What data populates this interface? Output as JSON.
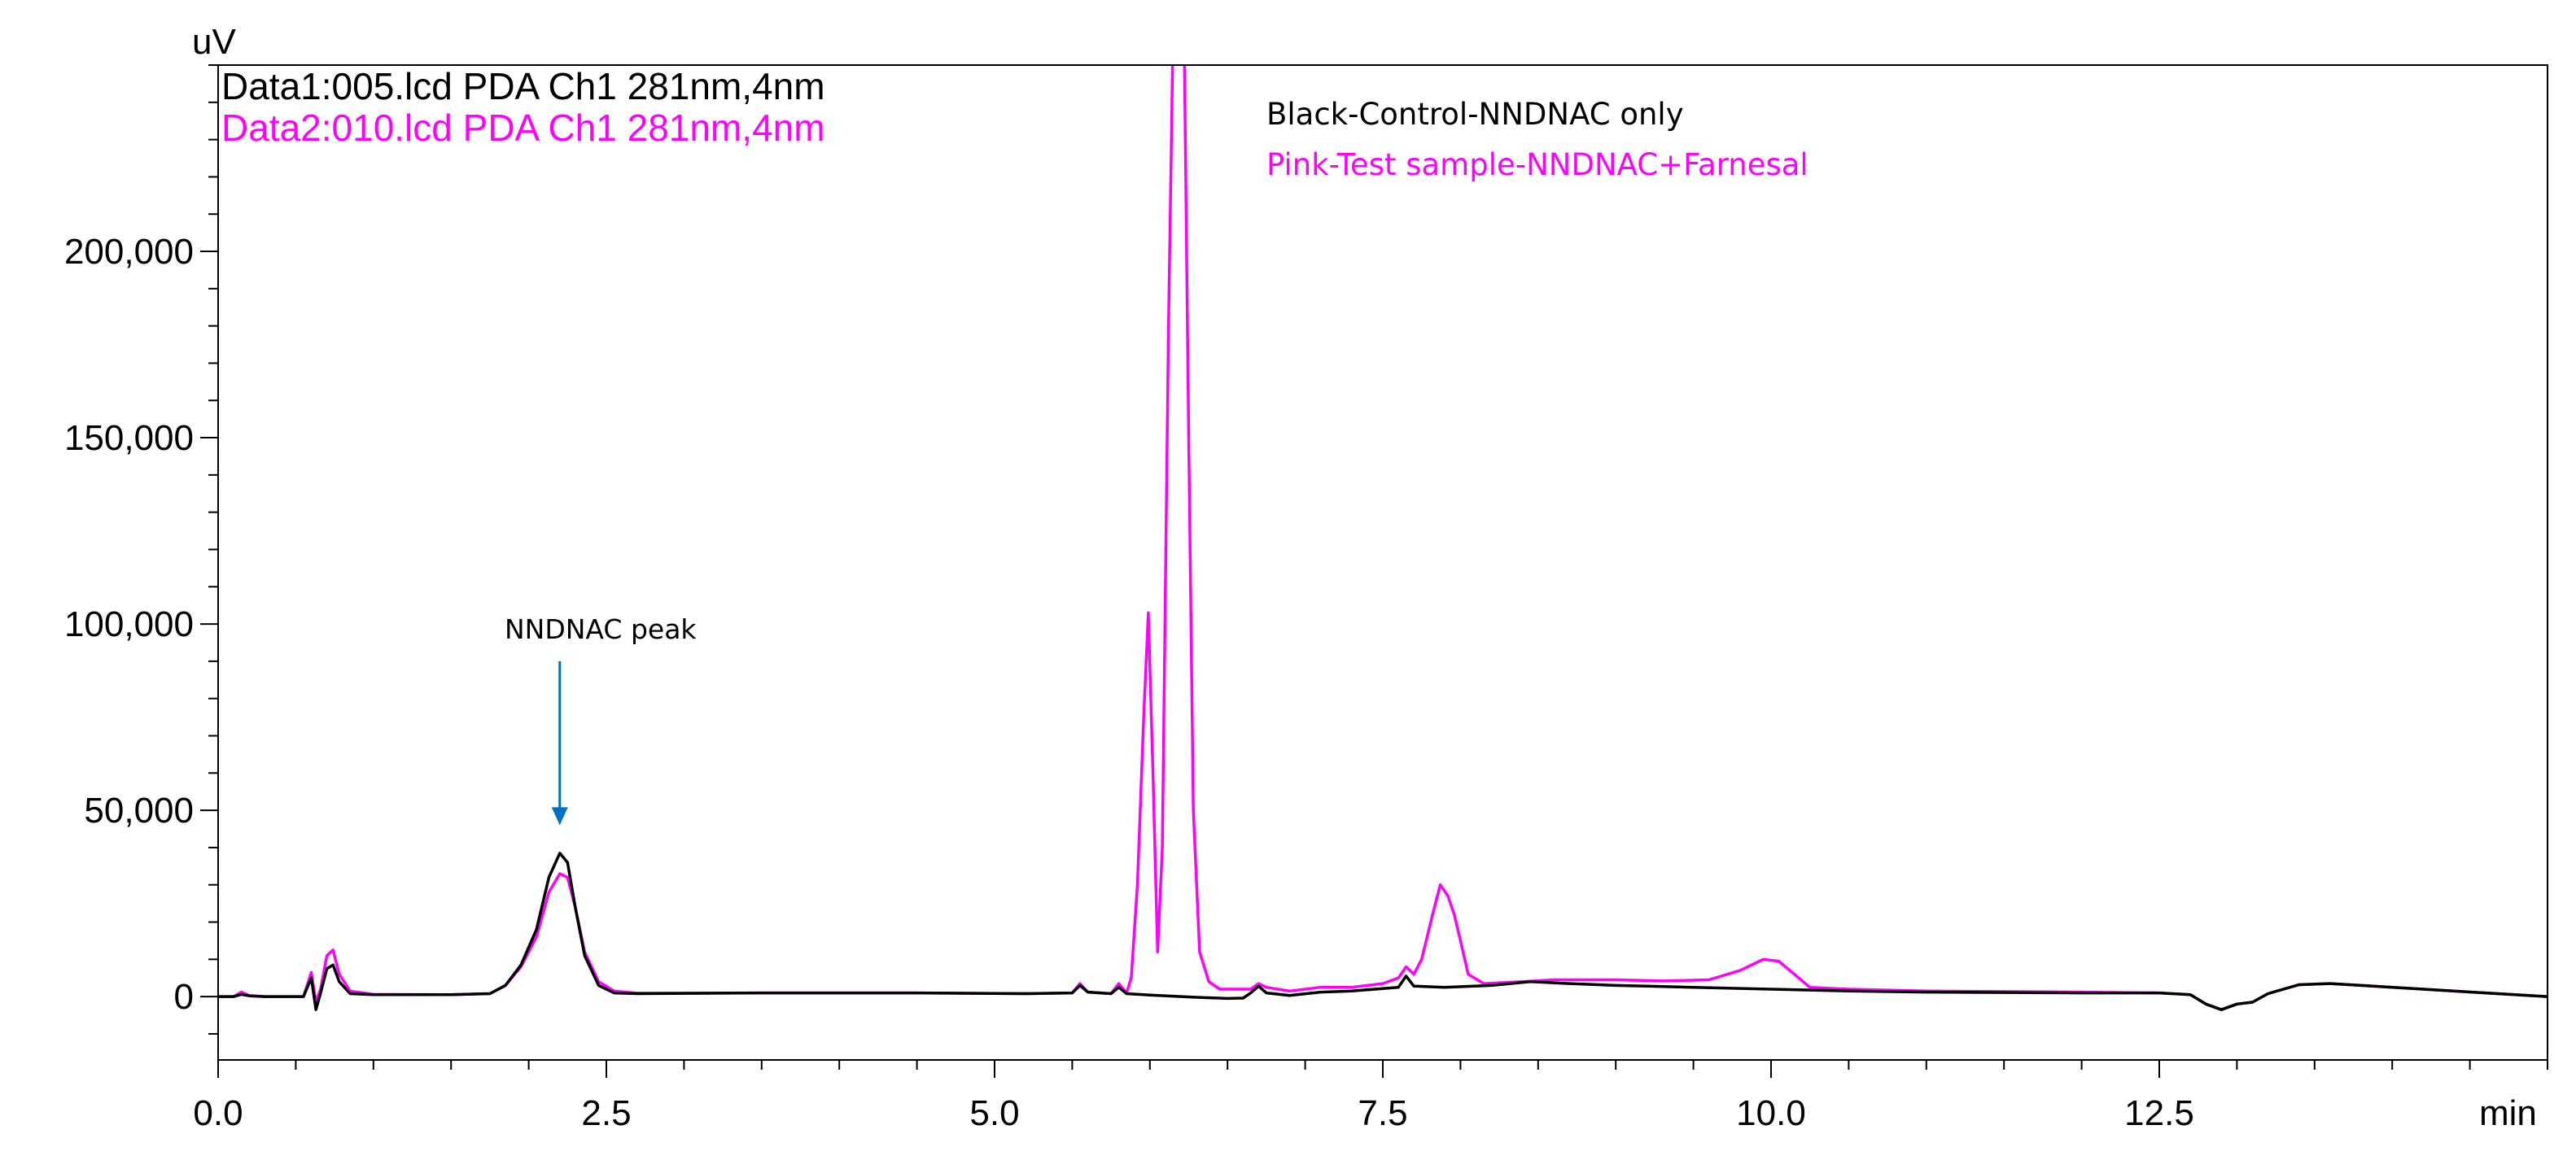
{
  "chart_data": {
    "type": "line",
    "y_unit": "uV",
    "x_unit": "min",
    "xlim": [
      0,
      15
    ],
    "ylim": [
      -17000,
      250000
    ],
    "x_ticks": [
      0.0,
      2.5,
      5.0,
      7.5,
      10.0,
      12.5
    ],
    "x_tick_labels": [
      "0.0",
      "2.5",
      "5.0",
      "7.5",
      "10.0",
      "12.5"
    ],
    "x_minor_step": 0.5,
    "y_ticks": [
      0,
      50000,
      100000,
      150000,
      200000
    ],
    "y_tick_labels": [
      "0",
      "50,000",
      "100,000",
      "150,000",
      "200,000"
    ],
    "y_minor_step": 10000,
    "grid": false,
    "legend_position": "top-left",
    "series": [
      {
        "name": "Data1:005.lcd PDA  Ch1 281nm,4nm",
        "color": "#000000",
        "points": [
          [
            0,
            0
          ],
          [
            0.1,
            0
          ],
          [
            0.15,
            600
          ],
          [
            0.2,
            200
          ],
          [
            0.3,
            0
          ],
          [
            0.55,
            0
          ],
          [
            0.6,
            5000
          ],
          [
            0.63,
            -3500
          ],
          [
            0.66,
            1000
          ],
          [
            0.7,
            7500
          ],
          [
            0.74,
            8500
          ],
          [
            0.78,
            4000
          ],
          [
            0.85,
            800
          ],
          [
            1.0,
            500
          ],
          [
            1.5,
            500
          ],
          [
            1.75,
            800
          ],
          [
            1.85,
            3000
          ],
          [
            1.95,
            8500
          ],
          [
            2.05,
            18000
          ],
          [
            2.13,
            32000
          ],
          [
            2.2,
            38500
          ],
          [
            2.25,
            36000
          ],
          [
            2.3,
            24000
          ],
          [
            2.36,
            11000
          ],
          [
            2.45,
            3000
          ],
          [
            2.55,
            1000
          ],
          [
            2.7,
            800
          ],
          [
            3.5,
            1000
          ],
          [
            4.5,
            1000
          ],
          [
            5.2,
            800
          ],
          [
            5.5,
            1000
          ],
          [
            5.55,
            3000
          ],
          [
            5.6,
            1200
          ],
          [
            5.75,
            800
          ],
          [
            5.8,
            2500
          ],
          [
            5.85,
            800
          ],
          [
            6.0,
            400
          ],
          [
            6.3,
            -200
          ],
          [
            6.5,
            -500
          ],
          [
            6.6,
            -400
          ],
          [
            6.65,
            1000
          ],
          [
            6.7,
            2800
          ],
          [
            6.75,
            1000
          ],
          [
            6.9,
            300
          ],
          [
            7.1,
            1200
          ],
          [
            7.3,
            1500
          ],
          [
            7.6,
            2500
          ],
          [
            7.65,
            5500
          ],
          [
            7.7,
            2800
          ],
          [
            7.9,
            2500
          ],
          [
            8.2,
            3000
          ],
          [
            8.45,
            4000
          ],
          [
            8.7,
            3500
          ],
          [
            9.0,
            3000
          ],
          [
            9.5,
            2500
          ],
          [
            10.0,
            2000
          ],
          [
            10.5,
            1500
          ],
          [
            11.0,
            1200
          ],
          [
            12.0,
            1000
          ],
          [
            12.5,
            1000
          ],
          [
            12.7,
            500
          ],
          [
            12.8,
            -2000
          ],
          [
            12.9,
            -3500
          ],
          [
            13.0,
            -2000
          ],
          [
            13.1,
            -1500
          ],
          [
            13.2,
            800
          ],
          [
            13.4,
            3200
          ],
          [
            13.6,
            3500
          ],
          [
            13.8,
            3000
          ],
          [
            14.2,
            2000
          ],
          [
            14.6,
            1000
          ],
          [
            15.0,
            0
          ]
        ]
      },
      {
        "name": "Data2:010.lcd PDA  Ch1 281nm,4nm",
        "color": "#ff00ff",
        "points": [
          [
            0,
            0
          ],
          [
            0.1,
            0
          ],
          [
            0.15,
            1200
          ],
          [
            0.2,
            300
          ],
          [
            0.3,
            0
          ],
          [
            0.55,
            0
          ],
          [
            0.6,
            6500
          ],
          [
            0.63,
            -1500
          ],
          [
            0.66,
            2000
          ],
          [
            0.7,
            11000
          ],
          [
            0.74,
            12500
          ],
          [
            0.78,
            6000
          ],
          [
            0.85,
            1500
          ],
          [
            1.0,
            600
          ],
          [
            1.5,
            500
          ],
          [
            1.75,
            800
          ],
          [
            1.85,
            3000
          ],
          [
            1.95,
            8000
          ],
          [
            2.05,
            16000
          ],
          [
            2.13,
            28000
          ],
          [
            2.2,
            33000
          ],
          [
            2.25,
            32000
          ],
          [
            2.3,
            24000
          ],
          [
            2.36,
            12000
          ],
          [
            2.45,
            4000
          ],
          [
            2.55,
            1500
          ],
          [
            2.7,
            900
          ],
          [
            3.5,
            1000
          ],
          [
            4.5,
            1000
          ],
          [
            5.2,
            800
          ],
          [
            5.5,
            1000
          ],
          [
            5.55,
            3500
          ],
          [
            5.6,
            1200
          ],
          [
            5.75,
            800
          ],
          [
            5.8,
            3500
          ],
          [
            5.85,
            1000
          ],
          [
            5.88,
            5000
          ],
          [
            5.92,
            30000
          ],
          [
            5.96,
            75000
          ],
          [
            5.99,
            103000
          ],
          [
            6.02,
            60000
          ],
          [
            6.05,
            12000
          ],
          [
            6.08,
            40000
          ],
          [
            6.12,
            180000
          ],
          [
            6.15,
            260000
          ],
          [
            6.22,
            260000
          ],
          [
            6.25,
            150000
          ],
          [
            6.28,
            50000
          ],
          [
            6.32,
            12000
          ],
          [
            6.38,
            4000
          ],
          [
            6.45,
            2000
          ],
          [
            6.55,
            2000
          ],
          [
            6.65,
            2000
          ],
          [
            6.7,
            3500
          ],
          [
            6.75,
            2500
          ],
          [
            6.9,
            1500
          ],
          [
            7.1,
            2500
          ],
          [
            7.3,
            2500
          ],
          [
            7.5,
            3500
          ],
          [
            7.6,
            5000
          ],
          [
            7.65,
            8000
          ],
          [
            7.7,
            6000
          ],
          [
            7.75,
            10000
          ],
          [
            7.82,
            22000
          ],
          [
            7.87,
            30000
          ],
          [
            7.92,
            27000
          ],
          [
            7.96,
            22000
          ],
          [
            8.0,
            15000
          ],
          [
            8.05,
            6000
          ],
          [
            8.15,
            3500
          ],
          [
            8.4,
            4000
          ],
          [
            8.6,
            4500
          ],
          [
            9.0,
            4500
          ],
          [
            9.3,
            4200
          ],
          [
            9.6,
            4500
          ],
          [
            9.8,
            7000
          ],
          [
            9.95,
            10000
          ],
          [
            10.05,
            9500
          ],
          [
            10.15,
            6000
          ],
          [
            10.25,
            2500
          ],
          [
            10.5,
            2000
          ],
          [
            11.0,
            1500
          ],
          [
            12.0,
            1200
          ],
          [
            12.5,
            1000
          ],
          [
            12.7,
            500
          ],
          [
            12.8,
            -2000
          ],
          [
            12.9,
            -3500
          ],
          [
            13.0,
            -2000
          ],
          [
            13.1,
            -1500
          ],
          [
            13.2,
            800
          ],
          [
            13.4,
            3200
          ],
          [
            13.6,
            3500
          ],
          [
            13.8,
            3000
          ],
          [
            14.2,
            2000
          ],
          [
            14.6,
            1000
          ],
          [
            15.0,
            0
          ]
        ]
      }
    ],
    "notes": [
      {
        "text": "Black-Control-NNDNAC only",
        "color": "#000000"
      },
      {
        "text": "Pink-Test sample-NNDNAC+Farnesal",
        "color": "#ff00ff"
      }
    ],
    "annotation": {
      "text": "NNDNAC peak",
      "arrow_color": "#0070c0",
      "x": 2.2,
      "arrow_top_y": 90000,
      "arrow_tip_y": 46000
    }
  }
}
